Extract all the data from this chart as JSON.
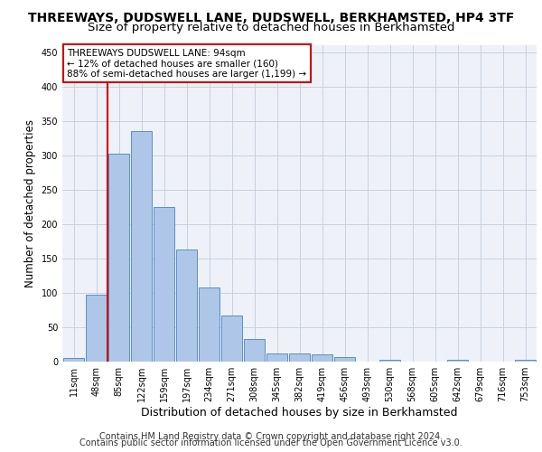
{
  "title1": "THREEWAYS, DUDSWELL LANE, DUDSWELL, BERKHAMSTED, HP4 3TF",
  "title2": "Size of property relative to detached houses in Berkhamsted",
  "xlabel": "Distribution of detached houses by size in Berkhamsted",
  "ylabel": "Number of detached properties",
  "categories": [
    "11sqm",
    "48sqm",
    "85sqm",
    "122sqm",
    "159sqm",
    "197sqm",
    "234sqm",
    "271sqm",
    "308sqm",
    "345sqm",
    "382sqm",
    "419sqm",
    "456sqm",
    "493sqm",
    "530sqm",
    "568sqm",
    "605sqm",
    "642sqm",
    "679sqm",
    "716sqm",
    "753sqm"
  ],
  "values": [
    5,
    97,
    302,
    335,
    225,
    163,
    108,
    67,
    33,
    12,
    12,
    10,
    6,
    0,
    3,
    0,
    0,
    3,
    0,
    0,
    3
  ],
  "bar_color": "#aec6e8",
  "bar_edge_color": "#5a8fc4",
  "vline_color": "#cc0000",
  "vline_pos": 1.5,
  "annotation_text": "THREEWAYS DUDSWELL LANE: 94sqm\n← 12% of detached houses are smaller (160)\n88% of semi-detached houses are larger (1,199) →",
  "annotation_box_color": "#ffffff",
  "annotation_box_edge_color": "#cc0000",
  "ylim": [
    0,
    460
  ],
  "yticks": [
    0,
    50,
    100,
    150,
    200,
    250,
    300,
    350,
    400,
    450
  ],
  "footer1": "Contains HM Land Registry data © Crown copyright and database right 2024.",
  "footer2": "Contains public sector information licensed under the Open Government Licence v3.0.",
  "bg_color": "#eef2f8",
  "grid_color": "#c8d0de",
  "title1_fontsize": 10,
  "title2_fontsize": 9.5,
  "xlabel_fontsize": 9,
  "ylabel_fontsize": 8.5,
  "footer_fontsize": 7,
  "annot_fontsize": 7.5,
  "tick_fontsize": 7
}
